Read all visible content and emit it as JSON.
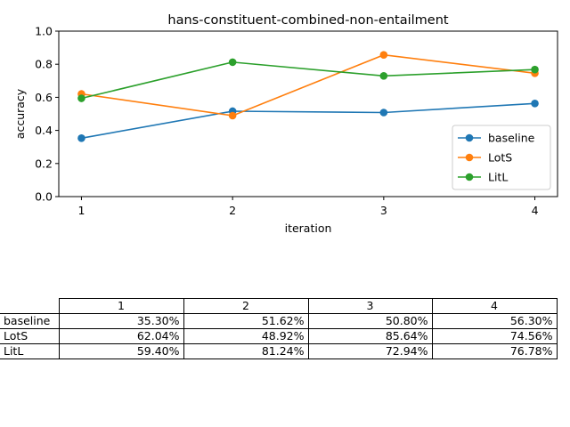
{
  "chart_data": {
    "type": "line",
    "title": "hans-constituent-combined-non-entailment",
    "xlabel": "iteration",
    "ylabel": "accuracy",
    "x": [
      1,
      2,
      3,
      4
    ],
    "xticks": [
      "1",
      "2",
      "3",
      "4"
    ],
    "ylim": [
      0.0,
      1.0
    ],
    "yticks": [
      "0.0",
      "0.2",
      "0.4",
      "0.6",
      "0.8",
      "1.0"
    ],
    "grid": false,
    "legend_position": "lower right",
    "series": [
      {
        "name": "baseline",
        "color": "#1f77b4",
        "values": [
          0.353,
          0.5162,
          0.508,
          0.563
        ]
      },
      {
        "name": "LotS",
        "color": "#ff7f0e",
        "values": [
          0.6204,
          0.4892,
          0.8564,
          0.7456
        ]
      },
      {
        "name": "LitL",
        "color": "#2ca02c",
        "values": [
          0.594,
          0.8124,
          0.7294,
          0.7678
        ]
      }
    ]
  },
  "table": {
    "columns": [
      "1",
      "2",
      "3",
      "4"
    ],
    "rows": [
      {
        "label": "baseline",
        "cells": [
          "35.30%",
          "51.62%",
          "50.80%",
          "56.30%"
        ]
      },
      {
        "label": "LotS",
        "cells": [
          "62.04%",
          "48.92%",
          "85.64%",
          "74.56%"
        ]
      },
      {
        "label": "LitL",
        "cells": [
          "59.40%",
          "81.24%",
          "72.94%",
          "76.78%"
        ]
      }
    ]
  }
}
